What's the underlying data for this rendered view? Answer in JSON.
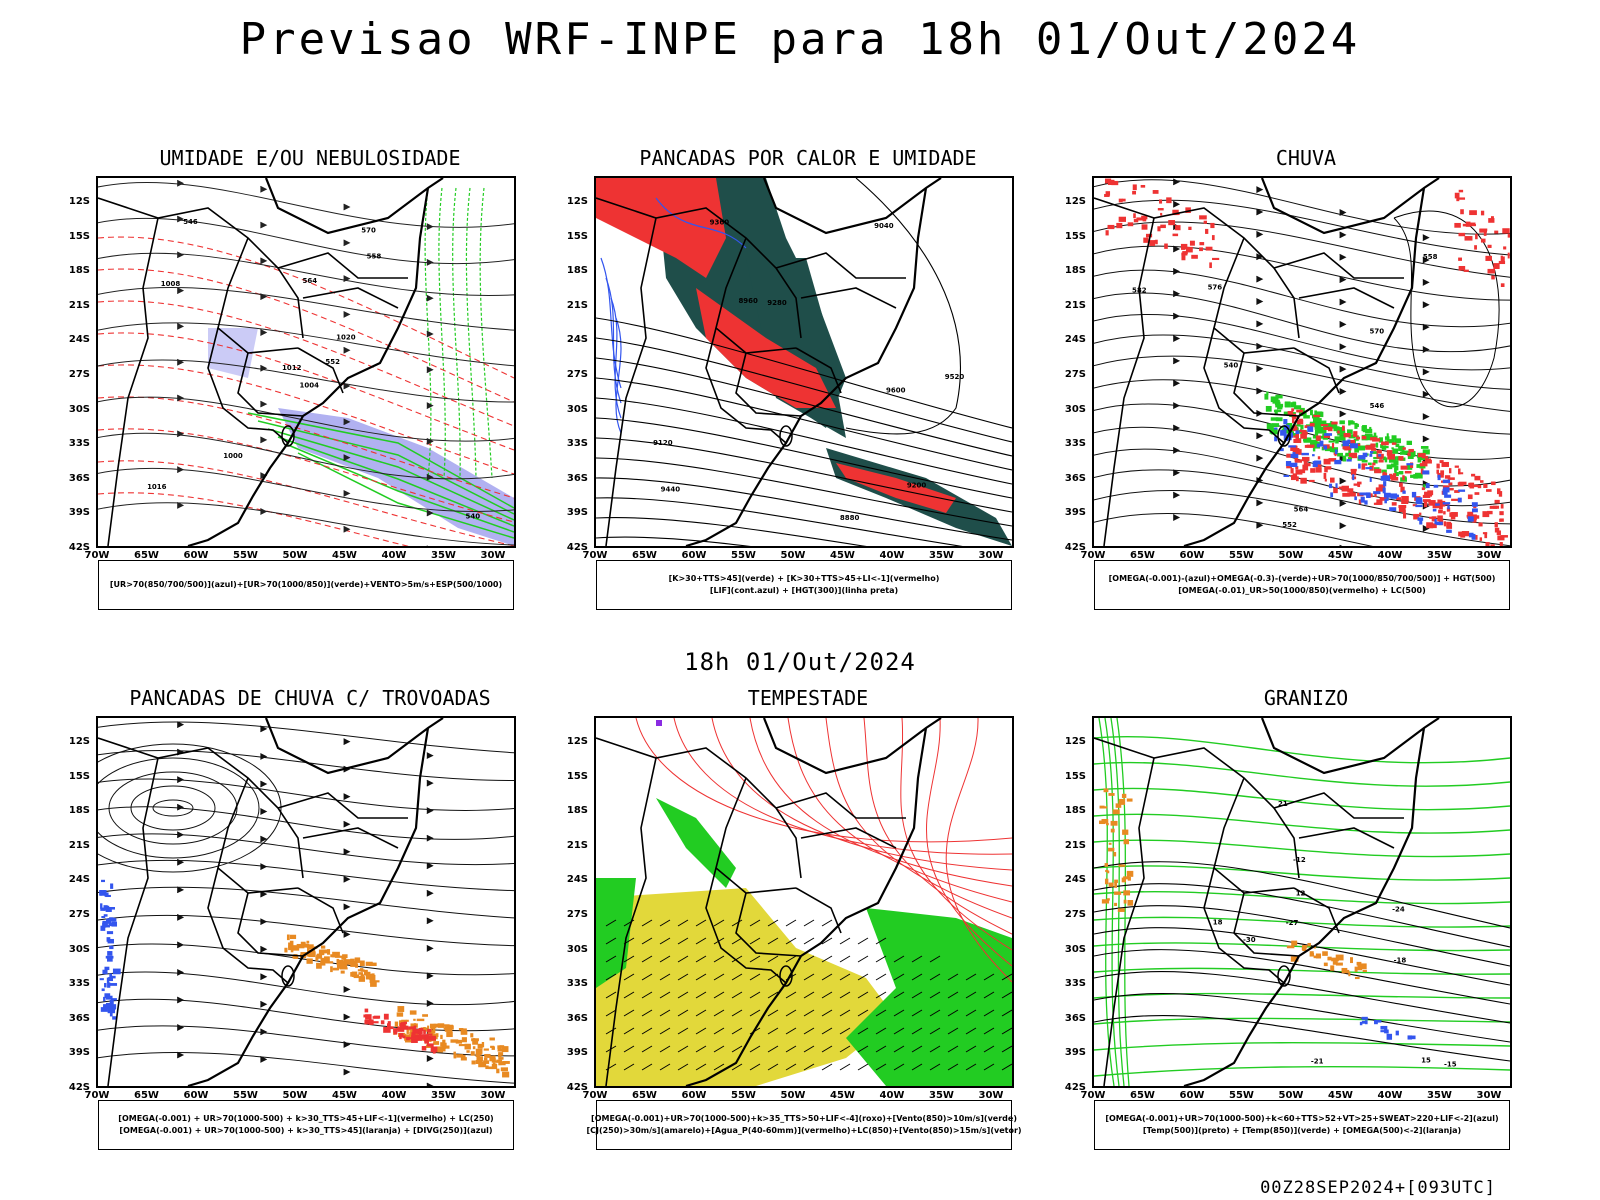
{
  "title": "Previsao WRF-INPE  para 18h 01/Out/2024",
  "mid_title": "18h 01/Out/2024",
  "footer": "00Z28SEP2024+[093UTC]",
  "lat_labels": [
    "12S",
    "15S",
    "18S",
    "21S",
    "24S",
    "27S",
    "30S",
    "33S",
    "36S",
    "39S",
    "42S"
  ],
  "lon_labels": [
    "70W",
    "65W",
    "60W",
    "55W",
    "50W",
    "45W",
    "40W",
    "35W",
    "30W"
  ],
  "colors": {
    "red": "#ee3333",
    "green": "#22cc22",
    "blue": "#3355ee",
    "dark_teal": "#1f4e4a",
    "lavender": "#a9a9f0",
    "yellow": "#e2d83a",
    "orange": "#e88a22",
    "purple": "#8a2be2"
  },
  "panels": [
    {
      "id": "umidade",
      "title": "UMIDADE E/OU NEBULOSIDADE",
      "legend": [
        "[UR>70(850/700/500)](azul)+[UR>70(1000/850)](verde)+VENTO>5m/s+ESP(500/1000)"
      ],
      "contour_labels": [
        "1004",
        "1008",
        "1012",
        "1016",
        "1020",
        "1000",
        "570",
        "564",
        "558",
        "552",
        "546",
        "540"
      ]
    },
    {
      "id": "pancadas-calor",
      "title": "PANCADAS POR CALOR E UMIDADE",
      "legend": [
        "[K>30+TTS>45](verde) + [K>30+TTS>45+LI<-1](vermelho)",
        "[LIF](cont.azul) + [HGT(300)](linha preta)"
      ],
      "contour_labels": [
        "9600",
        "9520",
        "9440",
        "9360",
        "9280",
        "9200",
        "9120",
        "9040",
        "8960",
        "8880"
      ]
    },
    {
      "id": "chuva",
      "title": "CHUVA",
      "legend": [
        "[OMEGA(-0.001)-(azul)+OMEGA(-0.3)-(verde)+UR>70(1000/850/700/500)] + HGT(500)",
        "[OMEGA(-0.01)_UR>50(1000/850)(vermelho) + LC(500)"
      ],
      "contour_labels": [
        "582",
        "576",
        "570",
        "564",
        "558",
        "552",
        "546",
        "540"
      ]
    },
    {
      "id": "pancadas-trovoadas",
      "title": "PANCADAS DE CHUVA C/ TROVOADAS",
      "legend": [
        "[OMEGA(-0.001) + UR>70(1000-500) + k>30_TTS>45+LIF<-1](vermelho) + LC(250)",
        "[OMEGA(-0.001) + UR>70(1000-500) + k>30_TTS>45](laranja) + [DIVG(250)](azul)"
      ],
      "contour_labels": []
    },
    {
      "id": "tempestade",
      "title": "TEMPESTADE",
      "legend": [
        "[OMEGA(-0.001)+UR>70(1000-500)+k>35_TTS>50+LIF<-4](roxo)+[Vento(850)>10m/s](verde)",
        "[CJ(250)>30m/s](amarelo)+[Agua_P(40-60mm)](vermelho)+LC(850)+[Vento(850)>15m/s](vetor)"
      ],
      "contour_labels": []
    },
    {
      "id": "granizo",
      "title": "GRANIZO",
      "legend": [
        "[OMEGA(-0.001)+UR>70(1000-500)+k<60+TTS>52+VT>25+SWEAT>220+LIF<-2](azul)",
        "[Temp(500)](preto) + [Temp(850)](verde) + [OMEGA(500)<-2](laranja)"
      ],
      "contour_labels": [
        "-12",
        "-15",
        "-18",
        "-21",
        "-24",
        "-27",
        "-30",
        "12",
        "15",
        "18",
        "21"
      ]
    }
  ]
}
